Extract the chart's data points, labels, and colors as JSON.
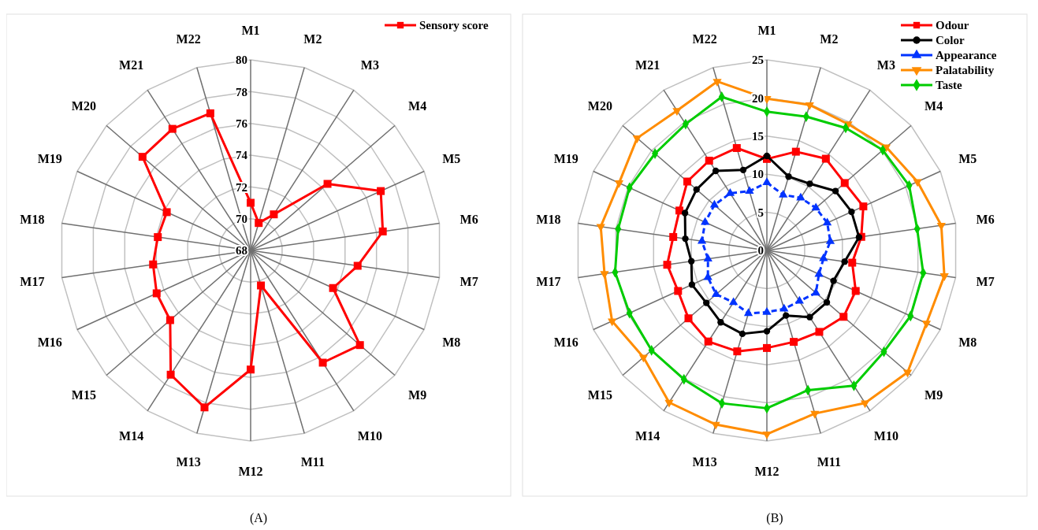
{
  "chart_data": [
    {
      "type": "radar",
      "categories": [
        "M1",
        "M2",
        "M3",
        "M4",
        "M5",
        "M6",
        "M7",
        "M8",
        "M9",
        "M10",
        "M11",
        "M12",
        "M13",
        "M14",
        "M15",
        "M16",
        "M17",
        "M18",
        "M19",
        "M20",
        "M21",
        "M22"
      ],
      "series": [
        {
          "name": "Sensory score",
          "color": "#ff0000",
          "marker": "square",
          "values": [
            71.0,
            69.8,
            70.7,
            74.4,
            77.0,
            76.4,
            74.8,
            73.7,
            77.1,
            76.4,
            70.3,
            75.5,
            78.3,
            77.3,
            74.7,
            74.5,
            74.2,
            73.9,
            73.8,
            77.0,
            77.1,
            77.0
          ]
        }
      ],
      "ylim": [
        68,
        80
      ],
      "yticks": [
        68,
        70,
        72,
        74,
        76,
        78,
        80
      ],
      "grid": true,
      "legend": "top right",
      "annotations": [
        "(A)"
      ]
    },
    {
      "type": "radar",
      "categories": [
        "M1",
        "M2",
        "M3",
        "M4",
        "M5",
        "M6",
        "M7",
        "M8",
        "M9",
        "M10",
        "M11",
        "M12",
        "M13",
        "M14",
        "M15",
        "M16",
        "M17",
        "M18",
        "M19",
        "M20",
        "M21",
        "M22"
      ],
      "series": [
        {
          "name": "Odour",
          "color": "#ff0000",
          "marker": "square",
          "values": [
            12.0,
            13.5,
            14.3,
            13.5,
            13.9,
            12.5,
            11.3,
            12.8,
            13.3,
            12.7,
            12.5,
            12.8,
            13.8,
            14.2,
            13.6,
            12.8,
            13.2,
            12.4,
            12.6,
            13.8,
            14.0,
            14.0
          ]
        },
        {
          "name": "Color",
          "color": "#000000",
          "marker": "circle",
          "values": [
            12.4,
            10.1,
            10.4,
            11.9,
            12.2,
            12.2,
            10.3,
            9.6,
            10.4,
            10.4,
            8.9,
            10.6,
            11.4,
            11.2,
            10.5,
            10.8,
            10.0,
            10.8,
            11.8,
            12.2,
            12.4,
            11.0
          ]
        },
        {
          "name": "Appearance",
          "color": "#0033ff",
          "marker": "triangle",
          "line_style": "dashed",
          "values": [
            8.9,
            7.6,
            8.2,
            8.5,
            8.7,
            8.4,
            7.5,
            7.5,
            8.5,
            7.9,
            8.0,
            8.1,
            8.6,
            8.1,
            8.8,
            8.5,
            7.8,
            8.6,
            8.9,
            9.1,
            8.9,
            8.1
          ]
        },
        {
          "name": "Palatability",
          "color": "#ff8c00",
          "marker": "triangle-down",
          "values": [
            19.9,
            19.9,
            19.7,
            20.7,
            21.7,
            23.1,
            23.5,
            23.0,
            24.4,
            23.8,
            22.3,
            24.1,
            23.8,
            23.7,
            21.4,
            22.3,
            21.5,
            22.0,
            21.3,
            22.5,
            21.8,
            23.1
          ]
        },
        {
          "name": "Taste",
          "color": "#00cc00",
          "marker": "diamond",
          "values": [
            18.2,
            18.3,
            19.1,
            20.1,
            20.5,
            19.9,
            20.7,
            20.7,
            20.3,
            21.1,
            19.1,
            20.7,
            20.9,
            20.1,
            20.0,
            19.8,
            20.1,
            19.7,
            19.8,
            19.4,
            19.7,
            21.0
          ]
        }
      ],
      "ylim": [
        0,
        25
      ],
      "yticks": [
        0,
        5,
        10,
        15,
        20,
        25
      ],
      "grid": true,
      "legend": "top right",
      "annotations": [
        "(B)"
      ]
    }
  ]
}
